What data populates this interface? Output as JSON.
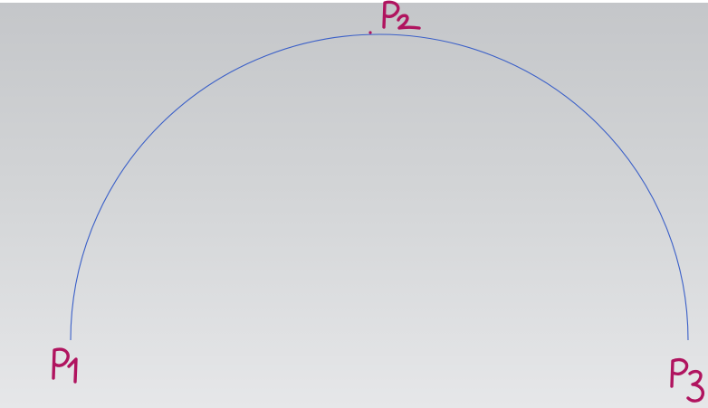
{
  "diagram": {
    "arc": {
      "color": "#3a5fc8",
      "through_points": [
        "P1",
        "P2",
        "P3"
      ]
    },
    "points": [
      {
        "id": "p1",
        "label": "P1",
        "label_color": "#b0145f"
      },
      {
        "id": "p2",
        "label": "P2",
        "label_color": "#b0145f"
      },
      {
        "id": "p3",
        "label": "P3",
        "label_color": "#b0145f"
      }
    ]
  }
}
